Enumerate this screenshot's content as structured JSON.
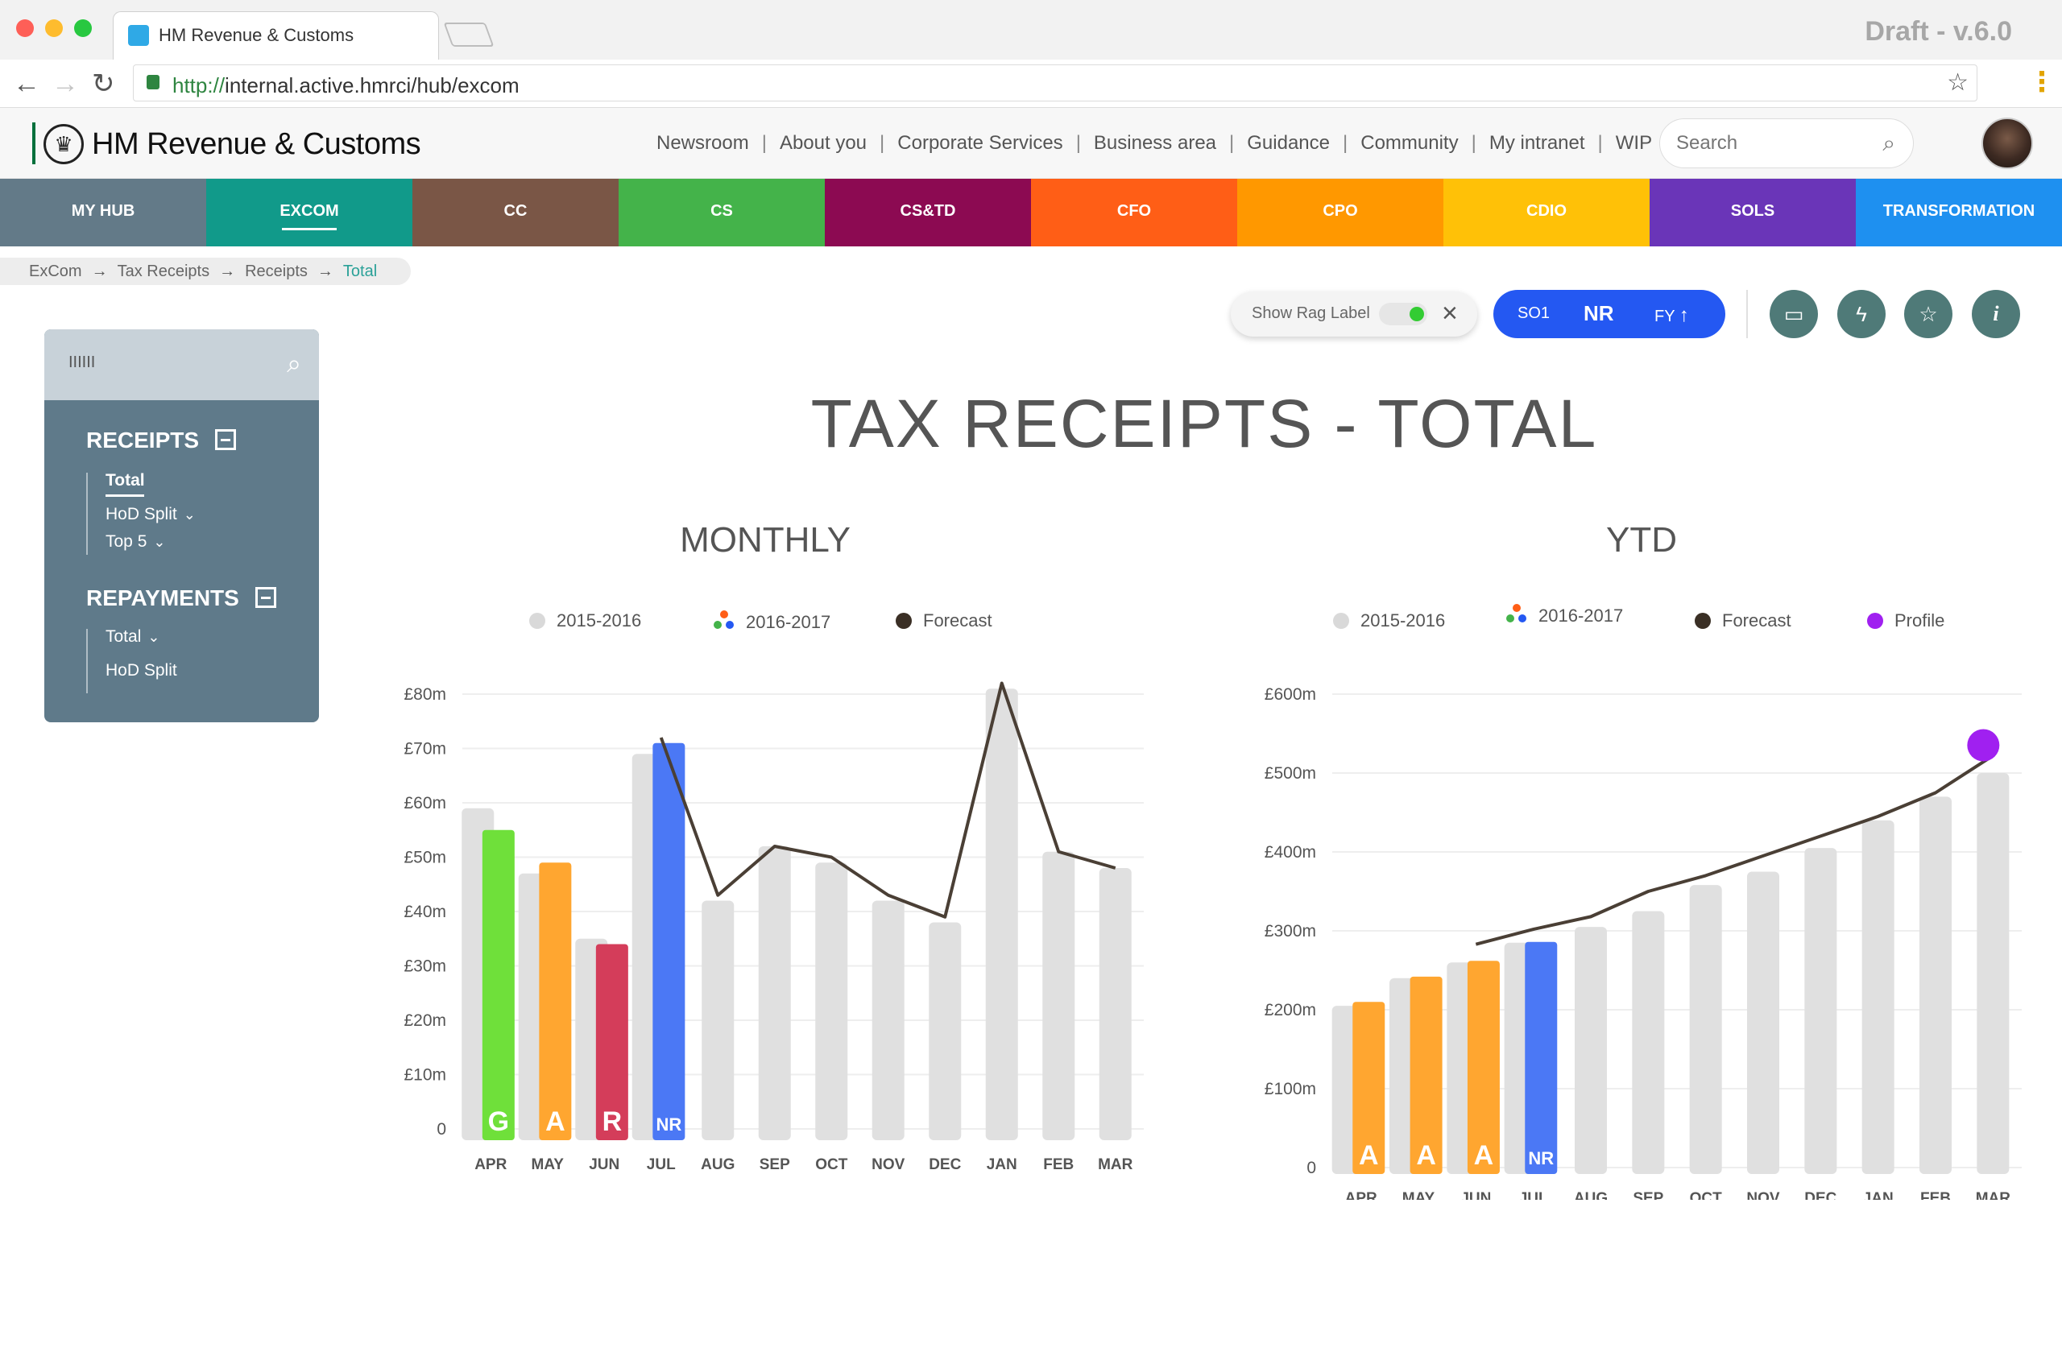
{
  "browser": {
    "tab_title": "HM Revenue & Customs",
    "draft_label": "Draft - v.6.0",
    "url_protocol": "http://",
    "url_rest": "internal.active.hmrci/hub/excom"
  },
  "header": {
    "brand": "HM Revenue & Customs",
    "nav": [
      "Newsroom",
      "About you",
      "Corporate Services",
      "Business area",
      "Guidance",
      "Community",
      "My intranet",
      "WIP"
    ],
    "search_placeholder": "Search"
  },
  "colornav": [
    {
      "label": "MY HUB",
      "color": "#637a88"
    },
    {
      "label": "EXCOM",
      "color": "#119a8a",
      "active": true
    },
    {
      "label": "CC",
      "color": "#7a5646"
    },
    {
      "label": "CS",
      "color": "#44b34a"
    },
    {
      "label": "CS&TD",
      "color": "#8c0a52"
    },
    {
      "label": "CFO",
      "color": "#ff5e16"
    },
    {
      "label": "CPO",
      "color": "#ff9800"
    },
    {
      "label": "CDIO",
      "color": "#ffc107"
    },
    {
      "label": "SOLS",
      "color": "#6a35b8"
    },
    {
      "label": "TRANSFORMATION",
      "color": "#1e90f0"
    }
  ],
  "breadcrumb": [
    "ExCom",
    "Tax Receipts",
    "Receipts",
    "Total"
  ],
  "toolbar": {
    "rag_label": "Show Rag Label",
    "so1": "SO1",
    "nr": "NR",
    "fy": "FY"
  },
  "sidebar": {
    "search_value": "IIIIII",
    "receipts_heading": "RECEIPTS",
    "receipts_items": [
      "Total",
      "HoD Split",
      "Top 5"
    ],
    "repayments_heading": "REPAYMENTS",
    "repayments_items": [
      "Total",
      "HoD Split"
    ]
  },
  "page_title": "TAX RECEIPTS - TOTAL",
  "chart_data": [
    {
      "type": "bar",
      "title": "MONTHLY",
      "legend": [
        "2015-2016",
        "2016-2017",
        "Forecast"
      ],
      "categories": [
        "APR",
        "MAY",
        "JUN",
        "JUL",
        "AUG",
        "SEP",
        "OCT",
        "NOV",
        "DEC",
        "JAN",
        "FEB",
        "MAR"
      ],
      "y_ticks": [
        "0",
        "£10m",
        "£20m",
        "£30m",
        "£40m",
        "£50m",
        "£60m",
        "£70m",
        "£80m"
      ],
      "ylim": [
        0,
        80
      ],
      "series": [
        {
          "name": "2015-2016",
          "values": [
            59,
            47,
            35,
            69,
            42,
            52,
            49,
            42,
            38,
            81,
            51,
            48
          ],
          "color": "#e0e0e0"
        },
        {
          "name": "2016-2017",
          "values": [
            55,
            49,
            34,
            71,
            null,
            null,
            null,
            null,
            null,
            null,
            null,
            null
          ],
          "colors": [
            "#6fe03a",
            "#ffa630",
            "#d43d5a",
            "#4b78f5"
          ],
          "labels": [
            "G",
            "A",
            "R",
            "NR"
          ]
        },
        {
          "name": "Forecast",
          "values": [
            null,
            null,
            null,
            72,
            43,
            52,
            50,
            43,
            39,
            82,
            51,
            48
          ],
          "color": "#4a3f35"
        }
      ]
    },
    {
      "type": "bar",
      "title": "YTD",
      "legend": [
        "2015-2016",
        "2016-2017",
        "Forecast",
        "Profile"
      ],
      "categories": [
        "APR",
        "MAY",
        "JUN",
        "JUL",
        "AUG",
        "SEP",
        "OCT",
        "NOV",
        "DEC",
        "JAN",
        "FEB",
        "MAR"
      ],
      "y_ticks": [
        "0",
        "£100m",
        "£200m",
        "£300m",
        "£400m",
        "£500m",
        "£600m"
      ],
      "ylim": [
        0,
        600
      ],
      "series": [
        {
          "name": "2015-2016",
          "values": [
            205,
            240,
            260,
            285,
            305,
            325,
            358,
            375,
            405,
            440,
            470,
            500
          ],
          "color": "#e0e0e0"
        },
        {
          "name": "2016-2017",
          "values": [
            210,
            242,
            262,
            286,
            null,
            null,
            null,
            null,
            null,
            null,
            null,
            null
          ],
          "colors": [
            "#ffa630",
            "#ffa630",
            "#ffa630",
            "#4b78f5"
          ],
          "labels": [
            "A",
            "A",
            "A",
            "NR"
          ]
        },
        {
          "name": "Forecast",
          "values": [
            null,
            null,
            283,
            302,
            318,
            350,
            370,
            395,
            420,
            445,
            475,
            522
          ],
          "color": "#4a3f35"
        },
        {
          "name": "Profile",
          "values": [
            null,
            null,
            null,
            null,
            null,
            null,
            null,
            null,
            null,
            null,
            null,
            525
          ],
          "color": "#a020f0"
        }
      ]
    }
  ]
}
